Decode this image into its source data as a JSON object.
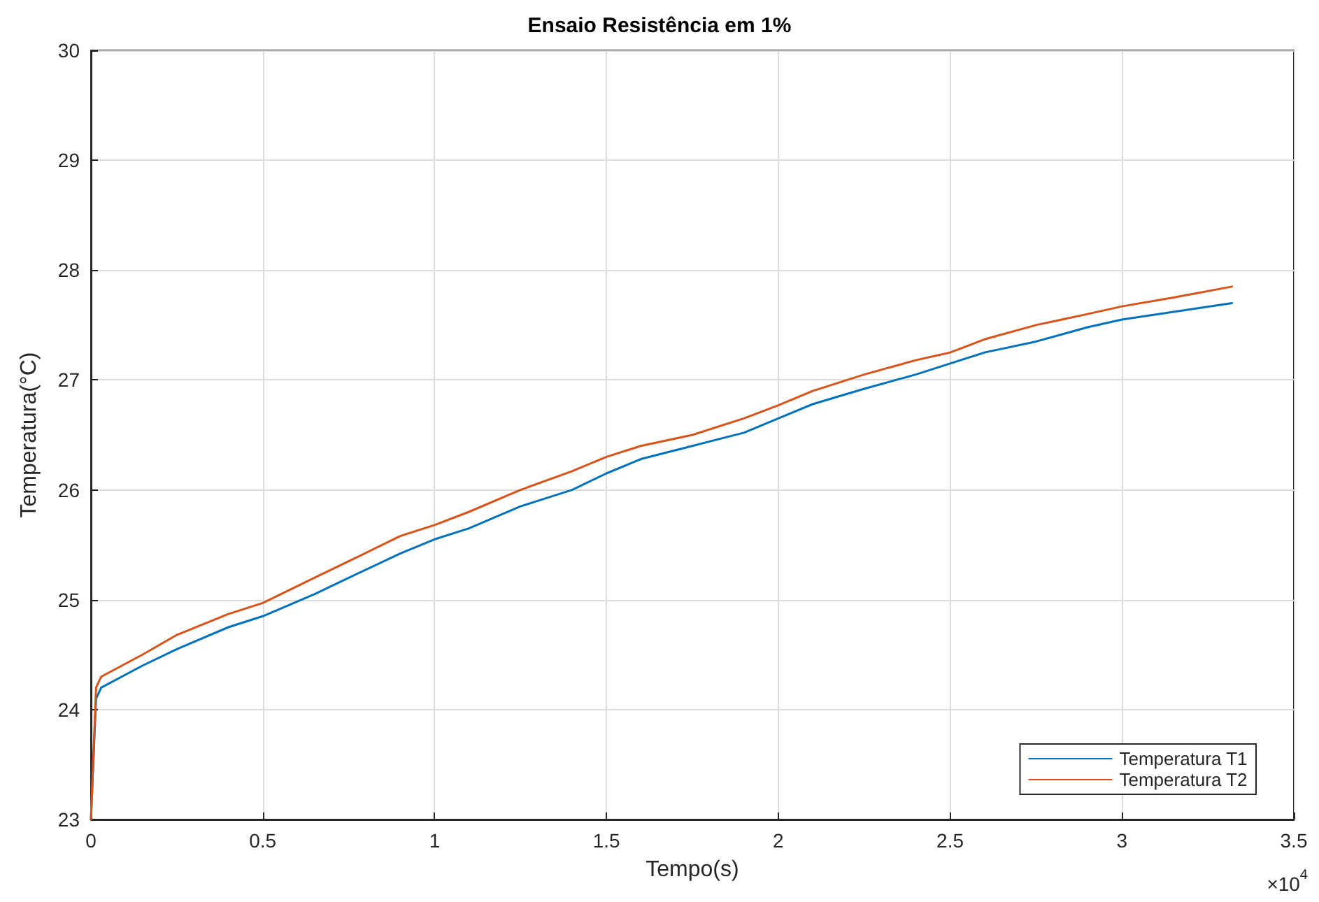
{
  "chart_data": {
    "type": "line",
    "title": "Ensaio Resistência em 1%",
    "xlabel": "Tempo(s)",
    "ylabel": "Temperatura(°C)",
    "annotations": [
      "×10$^{4}$"
    ],
    "xlim": [
      0,
      3.5
    ],
    "xticks": [
      0,
      0.5,
      1,
      1.5,
      2,
      2.5,
      3,
      3.5
    ],
    "ylim": [
      23,
      30
    ],
    "yticks": [
      23,
      24,
      25,
      26,
      27,
      28,
      29,
      30
    ],
    "grid": true,
    "legend": "bottom right",
    "marker": "none",
    "line_style": "solid",
    "series": [
      {
        "name": "Temperatura T1",
        "color": "#0072bd",
        "x": [
          0,
          0.015,
          0.03,
          0.15,
          0.25,
          0.4,
          0.5,
          0.65,
          0.75,
          0.9,
          1.0,
          1.1,
          1.25,
          1.4,
          1.5,
          1.6,
          1.75,
          1.9,
          2.0,
          2.1,
          2.25,
          2.4,
          2.5,
          2.6,
          2.75,
          2.9,
          3.0,
          3.15,
          3.32
        ],
        "values": [
          23,
          24.1,
          24.2,
          24.4,
          24.55,
          24.75,
          24.85,
          25.05,
          25.2,
          25.42,
          25.55,
          25.65,
          25.85,
          26.0,
          26.15,
          26.28,
          26.4,
          26.52,
          26.65,
          26.78,
          26.92,
          27.05,
          27.15,
          27.25,
          27.35,
          27.48,
          27.55,
          27.62,
          27.7
        ]
      },
      {
        "name": "Temperatura T2",
        "color": "#d95319",
        "x": [
          0,
          0.015,
          0.03,
          0.15,
          0.25,
          0.4,
          0.5,
          0.65,
          0.75,
          0.9,
          1.0,
          1.1,
          1.25,
          1.4,
          1.5,
          1.6,
          1.75,
          1.9,
          2.0,
          2.1,
          2.25,
          2.4,
          2.5,
          2.6,
          2.75,
          2.9,
          3.0,
          3.15,
          3.32
        ],
        "values": [
          23,
          24.2,
          24.3,
          24.5,
          24.68,
          24.87,
          24.97,
          25.2,
          25.35,
          25.58,
          25.68,
          25.8,
          26.0,
          26.17,
          26.3,
          26.4,
          26.5,
          26.65,
          26.77,
          26.9,
          27.05,
          27.18,
          27.25,
          27.37,
          27.5,
          27.6,
          27.67,
          27.75,
          27.85
        ]
      }
    ]
  }
}
